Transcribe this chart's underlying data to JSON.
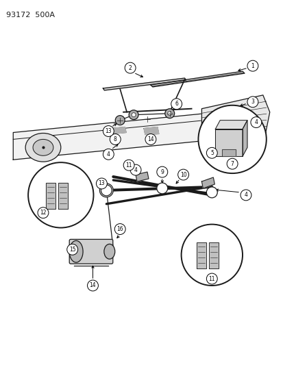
{
  "title": "93172  500A",
  "bg_color": "#ffffff",
  "line_color": "#1a1a1a",
  "fig_width": 4.14,
  "fig_height": 5.33,
  "dpi": 100
}
